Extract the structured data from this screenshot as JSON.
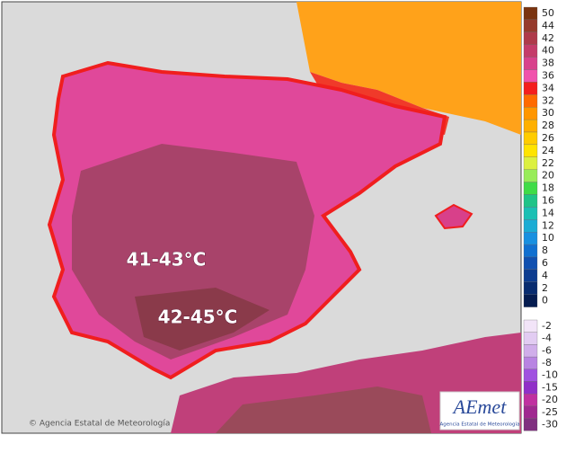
{
  "map": {
    "annotations": [
      "41-43°C",
      "42-45°C"
    ],
    "credit": "© Agencia Estatal de Meteorología",
    "logo": {
      "name": "AEmet",
      "subtitle": "Agencia Estatal de Meteorología"
    },
    "legend": {
      "upper": [
        {
          "label": "50",
          "color": "#7a3410"
        },
        {
          "label": "44",
          "color": "#963a2c"
        },
        {
          "label": "42",
          "color": "#ae3a4a"
        },
        {
          "label": "40",
          "color": "#c43c6a"
        },
        {
          "label": "38",
          "color": "#d8428c"
        },
        {
          "label": "36",
          "color": "#f052ac"
        },
        {
          "label": "34",
          "color": "#f41e1e"
        },
        {
          "label": "32",
          "color": "#ff6a00"
        },
        {
          "label": "30",
          "color": "#ff9600"
        },
        {
          "label": "28",
          "color": "#ffb000"
        },
        {
          "label": "26",
          "color": "#ffcc00"
        },
        {
          "label": "24",
          "color": "#ffe400"
        },
        {
          "label": "22",
          "color": "#dcf040"
        },
        {
          "label": "20",
          "color": "#98ec5a"
        },
        {
          "label": "18",
          "color": "#40dc48"
        },
        {
          "label": "16",
          "color": "#20c488"
        },
        {
          "label": "14",
          "color": "#1cc0b4"
        },
        {
          "label": "12",
          "color": "#1cacd4"
        },
        {
          "label": "10",
          "color": "#1890e0"
        },
        {
          "label": "8",
          "color": "#1070d0"
        },
        {
          "label": "6",
          "color": "#1050b0"
        },
        {
          "label": "4",
          "color": "#0c3c90"
        },
        {
          "label": "2",
          "color": "#082c70"
        },
        {
          "label": "0",
          "color": "#051c50"
        }
      ],
      "lower": [
        {
          "label": "-2",
          "color": "#f2e4f8"
        },
        {
          "label": "-4",
          "color": "#e2ccf2"
        },
        {
          "label": "-6",
          "color": "#d0aeea"
        },
        {
          "label": "-8",
          "color": "#b884e2"
        },
        {
          "label": "-10",
          "color": "#a052e0"
        },
        {
          "label": "-15",
          "color": "#9030c8"
        },
        {
          "label": "-20",
          "color": "#c030a0"
        },
        {
          "label": "-25",
          "color": "#a02890"
        },
        {
          "label": "-30",
          "color": "#803080"
        }
      ]
    }
  }
}
